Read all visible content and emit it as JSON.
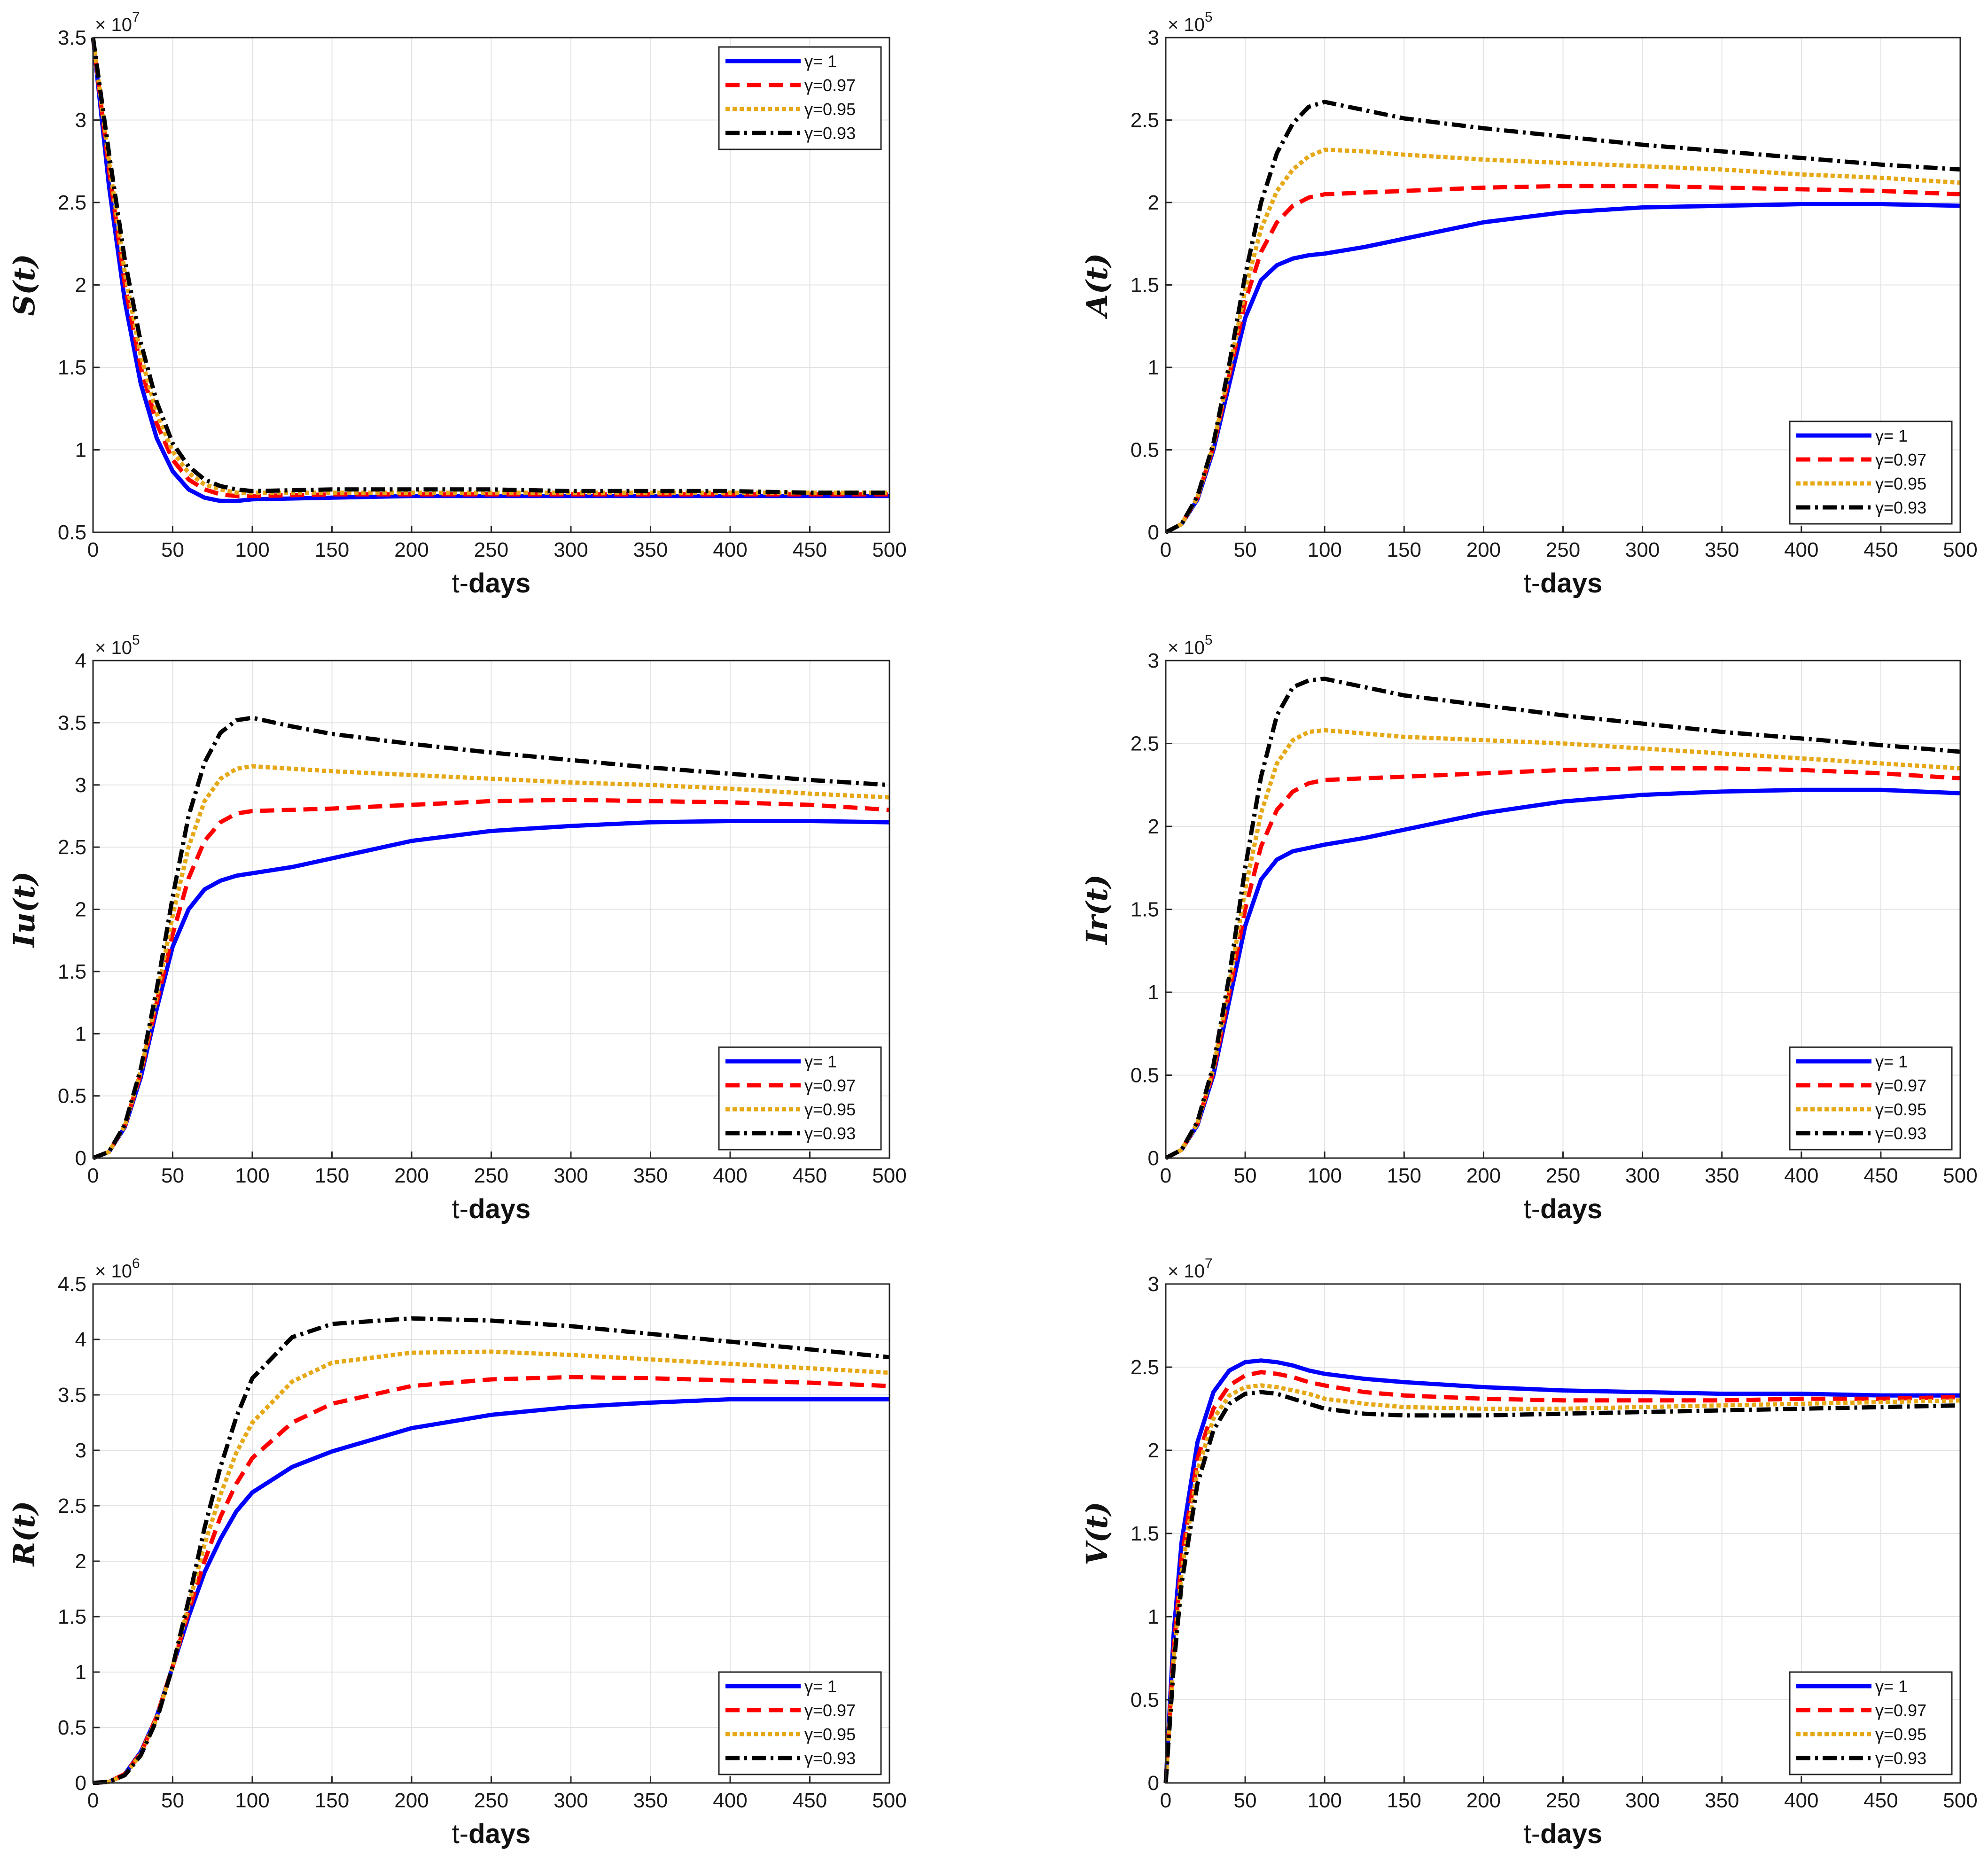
{
  "figure": {
    "xlabel_prefix": "t-",
    "xlabel_main": "days",
    "legend_labels": [
      "γ=   1",
      "γ=0.97",
      "γ=0.95",
      "γ=0.93"
    ],
    "series_colors": [
      "#0000ff",
      "#ff0000",
      "#e6a817",
      "#000000"
    ]
  },
  "chart_data": [
    {
      "type": "line",
      "title": "",
      "xlabel": "t-days",
      "ylabel": "S(t)",
      "x": [
        0,
        10,
        20,
        30,
        40,
        50,
        60,
        70,
        80,
        90,
        100,
        150,
        200,
        250,
        300,
        350,
        400,
        450,
        500
      ],
      "xlim": [
        0,
        500
      ],
      "ylim": [
        0.5,
        3.5
      ],
      "xticks": [
        "0",
        "50",
        "100",
        "150",
        "200",
        "250",
        "300",
        "350",
        "400",
        "450",
        "500"
      ],
      "yticks": [
        "0.5",
        "1",
        "1.5",
        "2",
        "2.5",
        "3",
        "3.5"
      ],
      "exponent": "7",
      "legend_position": "top-right",
      "series": [
        {
          "name": "γ=   1",
          "values": [
            3.5,
            2.6,
            1.9,
            1.4,
            1.07,
            0.87,
            0.76,
            0.71,
            0.69,
            0.69,
            0.7,
            0.71,
            0.72,
            0.72,
            0.72,
            0.72,
            0.72,
            0.72,
            0.72
          ]
        },
        {
          "name": "γ=0.97",
          "values": [
            3.5,
            2.7,
            2.0,
            1.5,
            1.16,
            0.94,
            0.82,
            0.76,
            0.73,
            0.72,
            0.72,
            0.73,
            0.73,
            0.73,
            0.73,
            0.73,
            0.73,
            0.73,
            0.73
          ]
        },
        {
          "name": "γ=0.95",
          "values": [
            3.5,
            2.75,
            2.07,
            1.57,
            1.22,
            0.99,
            0.86,
            0.79,
            0.76,
            0.74,
            0.74,
            0.74,
            0.74,
            0.74,
            0.74,
            0.74,
            0.74,
            0.74,
            0.74
          ]
        },
        {
          "name": "γ=0.93",
          "values": [
            3.5,
            2.8,
            2.15,
            1.65,
            1.29,
            1.04,
            0.9,
            0.82,
            0.78,
            0.76,
            0.75,
            0.76,
            0.76,
            0.76,
            0.75,
            0.75,
            0.75,
            0.74,
            0.74
          ]
        }
      ]
    },
    {
      "type": "line",
      "title": "",
      "xlabel": "t-days",
      "ylabel": "A(t)",
      "x": [
        0,
        10,
        20,
        30,
        40,
        50,
        60,
        70,
        80,
        90,
        100,
        125,
        150,
        200,
        250,
        300,
        350,
        400,
        450,
        500
      ],
      "xlim": [
        0,
        500
      ],
      "ylim": [
        0,
        3
      ],
      "xticks": [
        "0",
        "50",
        "100",
        "150",
        "200",
        "250",
        "300",
        "350",
        "400",
        "450",
        "500"
      ],
      "yticks": [
        "0",
        "0.5",
        "1",
        "1.5",
        "2",
        "2.5",
        "3"
      ],
      "exponent": "5",
      "legend_position": "bottom-right",
      "series": [
        {
          "name": "γ=   1",
          "values": [
            0,
            0.05,
            0.2,
            0.5,
            0.9,
            1.3,
            1.53,
            1.62,
            1.66,
            1.68,
            1.69,
            1.73,
            1.78,
            1.88,
            1.94,
            1.97,
            1.98,
            1.99,
            1.99,
            1.98
          ]
        },
        {
          "name": "γ=0.97",
          "values": [
            0,
            0.05,
            0.21,
            0.52,
            0.95,
            1.4,
            1.7,
            1.88,
            1.98,
            2.03,
            2.05,
            2.06,
            2.07,
            2.09,
            2.1,
            2.1,
            2.09,
            2.08,
            2.07,
            2.05
          ]
        },
        {
          "name": "γ=0.95",
          "values": [
            0,
            0.05,
            0.21,
            0.53,
            0.98,
            1.47,
            1.84,
            2.07,
            2.2,
            2.28,
            2.32,
            2.31,
            2.29,
            2.26,
            2.24,
            2.22,
            2.2,
            2.17,
            2.15,
            2.12
          ]
        },
        {
          "name": "γ=0.93",
          "values": [
            0,
            0.05,
            0.22,
            0.54,
            1.02,
            1.56,
            2.0,
            2.3,
            2.48,
            2.58,
            2.61,
            2.56,
            2.51,
            2.45,
            2.4,
            2.35,
            2.31,
            2.27,
            2.23,
            2.2
          ]
        }
      ]
    },
    {
      "type": "line",
      "title": "",
      "xlabel": "t-days",
      "ylabel": "Iu(t)",
      "x": [
        0,
        10,
        20,
        30,
        40,
        50,
        60,
        70,
        80,
        90,
        100,
        125,
        150,
        200,
        250,
        300,
        350,
        400,
        450,
        500
      ],
      "xlim": [
        0,
        500
      ],
      "ylim": [
        0,
        4
      ],
      "xticks": [
        "0",
        "50",
        "100",
        "150",
        "200",
        "250",
        "300",
        "350",
        "400",
        "450",
        "500"
      ],
      "yticks": [
        "0",
        "0.5",
        "1",
        "1.5",
        "2",
        "2.5",
        "3",
        "3.5",
        "4"
      ],
      "exponent": "5",
      "legend_position": "bottom-right",
      "series": [
        {
          "name": "γ=   1",
          "values": [
            0,
            0.05,
            0.25,
            0.65,
            1.2,
            1.7,
            2.0,
            2.16,
            2.23,
            2.27,
            2.29,
            2.34,
            2.41,
            2.55,
            2.63,
            2.67,
            2.7,
            2.71,
            2.71,
            2.7
          ]
        },
        {
          "name": "γ=0.97",
          "values": [
            0,
            0.05,
            0.26,
            0.68,
            1.25,
            1.8,
            2.25,
            2.55,
            2.7,
            2.77,
            2.79,
            2.8,
            2.81,
            2.84,
            2.87,
            2.88,
            2.87,
            2.86,
            2.84,
            2.8
          ]
        },
        {
          "name": "γ=0.95",
          "values": [
            0,
            0.05,
            0.26,
            0.7,
            1.3,
            1.95,
            2.5,
            2.87,
            3.05,
            3.13,
            3.15,
            3.13,
            3.11,
            3.08,
            3.05,
            3.02,
            3.0,
            2.97,
            2.93,
            2.9
          ]
        },
        {
          "name": "γ=0.93",
          "values": [
            0,
            0.05,
            0.27,
            0.72,
            1.36,
            2.1,
            2.75,
            3.18,
            3.42,
            3.52,
            3.54,
            3.47,
            3.41,
            3.33,
            3.26,
            3.2,
            3.14,
            3.09,
            3.04,
            3.0
          ]
        }
      ]
    },
    {
      "type": "line",
      "title": "",
      "xlabel": "t-days",
      "ylabel": "Ir(t)",
      "x": [
        0,
        10,
        20,
        30,
        40,
        50,
        60,
        70,
        80,
        90,
        100,
        125,
        150,
        200,
        250,
        300,
        350,
        400,
        450,
        500
      ],
      "xlim": [
        0,
        500
      ],
      "ylim": [
        0,
        3
      ],
      "xticks": [
        "0",
        "50",
        "100",
        "150",
        "200",
        "250",
        "300",
        "350",
        "400",
        "450",
        "500"
      ],
      "yticks": [
        "0",
        "0.5",
        "1",
        "1.5",
        "2",
        "2.5",
        "3"
      ],
      "exponent": "5",
      "legend_position": "bottom-right",
      "series": [
        {
          "name": "γ=   1",
          "values": [
            0,
            0.05,
            0.2,
            0.5,
            0.95,
            1.4,
            1.68,
            1.8,
            1.85,
            1.87,
            1.89,
            1.93,
            1.98,
            2.08,
            2.15,
            2.19,
            2.21,
            2.22,
            2.22,
            2.2
          ]
        },
        {
          "name": "γ=0.97",
          "values": [
            0,
            0.05,
            0.21,
            0.52,
            1.0,
            1.5,
            1.88,
            2.1,
            2.21,
            2.26,
            2.28,
            2.29,
            2.3,
            2.32,
            2.34,
            2.35,
            2.35,
            2.34,
            2.32,
            2.29
          ]
        },
        {
          "name": "γ=0.95",
          "values": [
            0,
            0.05,
            0.21,
            0.54,
            1.05,
            1.62,
            2.08,
            2.38,
            2.52,
            2.57,
            2.58,
            2.56,
            2.54,
            2.52,
            2.5,
            2.47,
            2.44,
            2.41,
            2.38,
            2.35
          ]
        },
        {
          "name": "γ=0.93",
          "values": [
            0,
            0.05,
            0.22,
            0.56,
            1.1,
            1.75,
            2.3,
            2.67,
            2.84,
            2.88,
            2.89,
            2.84,
            2.79,
            2.73,
            2.67,
            2.62,
            2.57,
            2.53,
            2.49,
            2.45
          ]
        }
      ]
    },
    {
      "type": "line",
      "title": "",
      "xlabel": "t-days",
      "ylabel": "R(t)",
      "x": [
        0,
        10,
        20,
        30,
        40,
        50,
        60,
        70,
        80,
        90,
        100,
        125,
        150,
        200,
        250,
        300,
        350,
        400,
        450,
        500
      ],
      "xlim": [
        0,
        500
      ],
      "ylim": [
        0,
        4.5
      ],
      "xticks": [
        "0",
        "50",
        "100",
        "150",
        "200",
        "250",
        "300",
        "350",
        "400",
        "450",
        "500"
      ],
      "yticks": [
        "0",
        "0.5",
        "1",
        "1.5",
        "2",
        "2.5",
        "3",
        "3.5",
        "4",
        "4.5"
      ],
      "exponent": "6",
      "legend_position": "bottom-right",
      "series": [
        {
          "name": "γ=   1",
          "values": [
            0,
            0.01,
            0.08,
            0.28,
            0.6,
            1.05,
            1.5,
            1.9,
            2.2,
            2.45,
            2.62,
            2.85,
            2.99,
            3.2,
            3.32,
            3.39,
            3.43,
            3.46,
            3.46,
            3.46
          ]
        },
        {
          "name": "γ=0.97",
          "values": [
            0,
            0.01,
            0.08,
            0.27,
            0.6,
            1.05,
            1.55,
            2.0,
            2.4,
            2.7,
            2.93,
            3.25,
            3.42,
            3.58,
            3.64,
            3.66,
            3.65,
            3.63,
            3.61,
            3.58
          ]
        },
        {
          "name": "γ=0.95",
          "values": [
            0,
            0.01,
            0.07,
            0.26,
            0.58,
            1.05,
            1.6,
            2.15,
            2.6,
            2.98,
            3.25,
            3.62,
            3.79,
            3.88,
            3.89,
            3.86,
            3.82,
            3.78,
            3.74,
            3.7
          ]
        },
        {
          "name": "γ=0.93",
          "values": [
            0,
            0.01,
            0.07,
            0.25,
            0.57,
            1.05,
            1.65,
            2.3,
            2.85,
            3.3,
            3.65,
            4.02,
            4.14,
            4.19,
            4.17,
            4.12,
            4.05,
            3.98,
            3.91,
            3.84
          ]
        }
      ]
    },
    {
      "type": "line",
      "title": "",
      "xlabel": "t-days",
      "ylabel": "V(t)",
      "x": [
        0,
        5,
        10,
        20,
        30,
        40,
        50,
        60,
        70,
        80,
        90,
        100,
        125,
        150,
        200,
        250,
        300,
        350,
        400,
        450,
        500
      ],
      "xlim": [
        0,
        500
      ],
      "ylim": [
        0,
        3
      ],
      "xticks": [
        "0",
        "50",
        "100",
        "150",
        "200",
        "250",
        "300",
        "350",
        "400",
        "450",
        "500"
      ],
      "yticks": [
        "0",
        "0.5",
        "1",
        "1.5",
        "2",
        "2.5",
        "3"
      ],
      "exponent": "7",
      "legend_position": "bottom-right",
      "series": [
        {
          "name": "γ=   1",
          "values": [
            0,
            0.9,
            1.45,
            2.05,
            2.35,
            2.48,
            2.53,
            2.54,
            2.53,
            2.51,
            2.48,
            2.46,
            2.43,
            2.41,
            2.38,
            2.36,
            2.35,
            2.34,
            2.34,
            2.33,
            2.33
          ]
        },
        {
          "name": "γ=0.97",
          "values": [
            0,
            0.8,
            1.35,
            1.95,
            2.25,
            2.39,
            2.45,
            2.47,
            2.46,
            2.44,
            2.41,
            2.39,
            2.35,
            2.33,
            2.31,
            2.3,
            2.3,
            2.3,
            2.31,
            2.31,
            2.32
          ]
        },
        {
          "name": "γ=0.95",
          "values": [
            0,
            0.75,
            1.27,
            1.88,
            2.19,
            2.33,
            2.38,
            2.39,
            2.38,
            2.36,
            2.34,
            2.31,
            2.28,
            2.26,
            2.25,
            2.25,
            2.26,
            2.27,
            2.28,
            2.29,
            2.3
          ]
        },
        {
          "name": "γ=0.93",
          "values": [
            0,
            0.7,
            1.2,
            1.8,
            2.12,
            2.28,
            2.34,
            2.35,
            2.34,
            2.31,
            2.28,
            2.25,
            2.22,
            2.21,
            2.21,
            2.22,
            2.23,
            2.24,
            2.25,
            2.26,
            2.27
          ]
        }
      ]
    }
  ]
}
